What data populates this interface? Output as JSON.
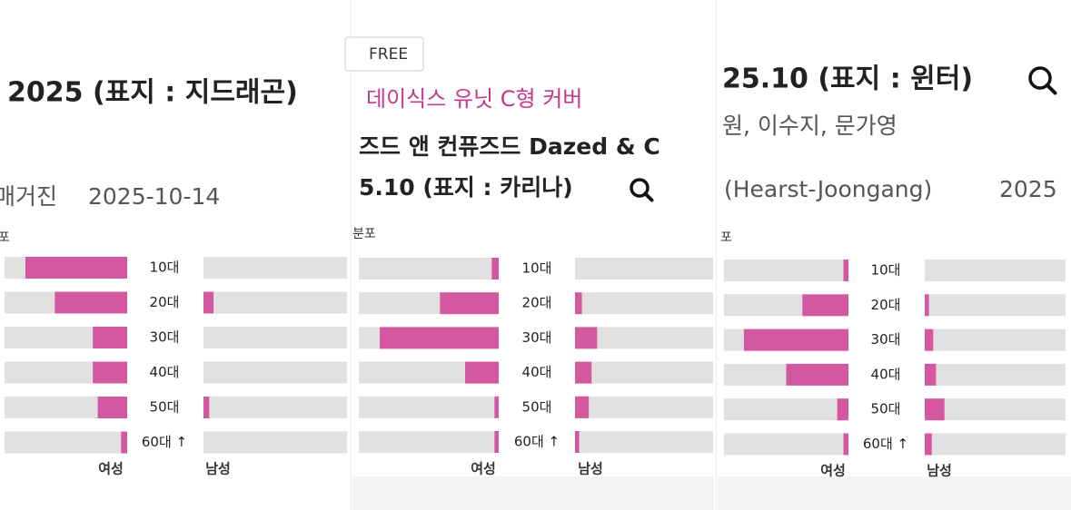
{
  "panels": [
    {
      "header": [
        "2025 (표지 : 지드래곤)",
        "매거진",
        "2025-10-14",
        "포"
      ],
      "rows": [
        {
          "age": "10대",
          "female": 0.83,
          "male": 0
        },
        {
          "age": "20대",
          "female": 0.59,
          "male": 0.07
        },
        {
          "age": "30대",
          "female": 0.28,
          "male": 0
        },
        {
          "age": "40대",
          "female": 0.28,
          "male": 0
        },
        {
          "age": "50대",
          "female": 0.24,
          "male": 0.04
        },
        {
          "age": "60대 ↑",
          "female": 0.05,
          "male": 0
        }
      ],
      "female_label": "여성",
      "male_label": "남성"
    },
    {
      "header": [
        "FREE",
        "데이식스 유닛 C형 커버",
        "즈드 앤 컨퓨즈드 Dazed & C",
        "5.10 (표지 : 카리나)",
        "분포"
      ],
      "rows": [
        {
          "age": "10대",
          "female": 0.05,
          "male": 0
        },
        {
          "age": "20대",
          "female": 0.42,
          "male": 0.05
        },
        {
          "age": "30대",
          "female": 0.85,
          "male": 0.16
        },
        {
          "age": "40대",
          "female": 0.24,
          "male": 0.12
        },
        {
          "age": "50대",
          "female": 0.03,
          "male": 0.1
        },
        {
          "age": "60대 ↑",
          "female": 0.03,
          "male": 0.03
        }
      ],
      "female_label": "여성",
      "male_label": "남성"
    },
    {
      "header": [
        "25.10 (표지 : 윈터)",
        "원, 이수지, 문가영",
        "(Hearst-Joongang)",
        "2025",
        "포"
      ],
      "rows": [
        {
          "age": "10대",
          "female": 0.04,
          "male": 0
        },
        {
          "age": "20대",
          "female": 0.37,
          "male": 0.03
        },
        {
          "age": "30대",
          "female": 0.84,
          "male": 0.06
        },
        {
          "age": "40대",
          "female": 0.5,
          "male": 0.08
        },
        {
          "age": "50대",
          "female": 0.09,
          "male": 0.14
        },
        {
          "age": "60대 ↑",
          "female": 0.04,
          "male": 0.05
        }
      ],
      "female_label": "여성",
      "male_label": "남성"
    }
  ]
}
